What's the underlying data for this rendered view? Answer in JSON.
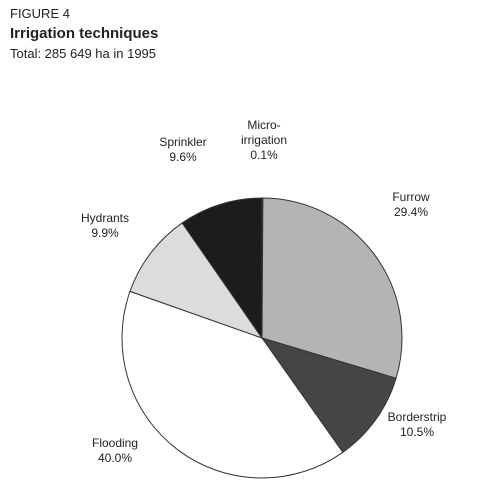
{
  "chart_data": {
    "type": "pie",
    "caption": "FIGURE 4",
    "title": "Irrigation techniques",
    "subtitle": "Total: 285 649 ha in 1995",
    "categories": [
      "Micro-irrigation",
      "Furrow",
      "Borderstrip",
      "Flooding",
      "Hydrants",
      "Sprinkler"
    ],
    "values": [
      0.1,
      29.4,
      10.5,
      40.0,
      9.9,
      9.6
    ],
    "value_labels": [
      "0.1%",
      "29.4%",
      "10.5%",
      "40.0%",
      "9.9%",
      "9.6%"
    ],
    "colors": [
      "#303030",
      "#b4b4b4",
      "#454545",
      "#ffffff",
      "#dcdcdc",
      "#1c1c1c"
    ]
  }
}
